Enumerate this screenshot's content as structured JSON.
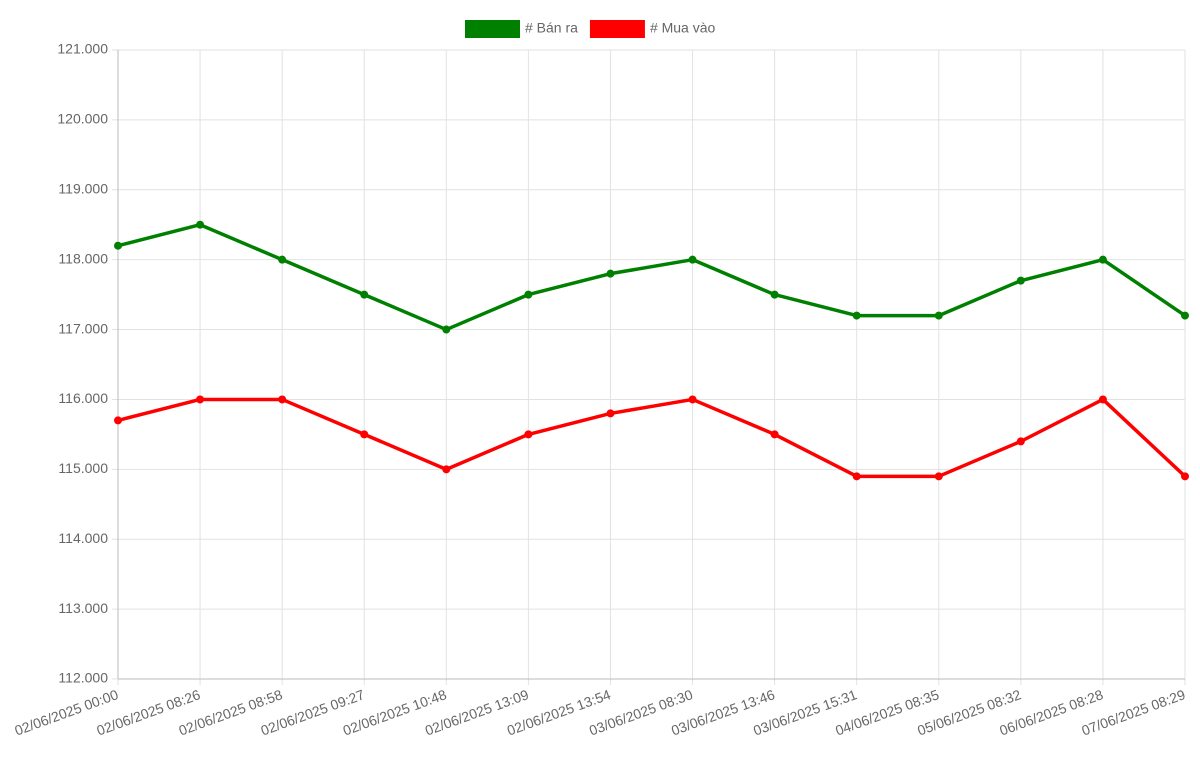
{
  "chart_data": {
    "type": "line",
    "categories": [
      "02/06/2025 00:00",
      "02/06/2025 08:26",
      "02/06/2025 08:58",
      "02/06/2025 09:27",
      "02/06/2025 10:48",
      "02/06/2025 13:09",
      "02/06/2025 13:54",
      "03/06/2025 08:30",
      "03/06/2025 13:46",
      "03/06/2025 15:31",
      "04/06/2025 08:35",
      "05/06/2025 08:32",
      "06/06/2025 08:28",
      "07/06/2025 08:29"
    ],
    "series": [
      {
        "name": "# Bán ra",
        "color": "#008000",
        "values": [
          118200,
          118500,
          118000,
          117500,
          117000,
          117500,
          117800,
          118000,
          117500,
          117200,
          117200,
          117700,
          118000,
          117200
        ]
      },
      {
        "name": "# Mua vào",
        "color": "#ff0000",
        "values": [
          115700,
          116000,
          116000,
          115500,
          115000,
          115500,
          115800,
          116000,
          115500,
          114900,
          114900,
          115400,
          116000,
          114900
        ]
      }
    ],
    "ylim": [
      112000,
      121000
    ],
    "yticks": [
      {
        "value": 112000,
        "label": "112.000"
      },
      {
        "value": 113000,
        "label": "113.000"
      },
      {
        "value": 114000,
        "label": "114.000"
      },
      {
        "value": 115000,
        "label": "115.000"
      },
      {
        "value": 116000,
        "label": "116.000"
      },
      {
        "value": 117000,
        "label": "117.000"
      },
      {
        "value": 118000,
        "label": "118.000"
      },
      {
        "value": 119000,
        "label": "119.000"
      },
      {
        "value": 120000,
        "label": "120.000"
      },
      {
        "value": 121000,
        "label": "121.000"
      }
    ],
    "grid": true,
    "legend": "top"
  }
}
